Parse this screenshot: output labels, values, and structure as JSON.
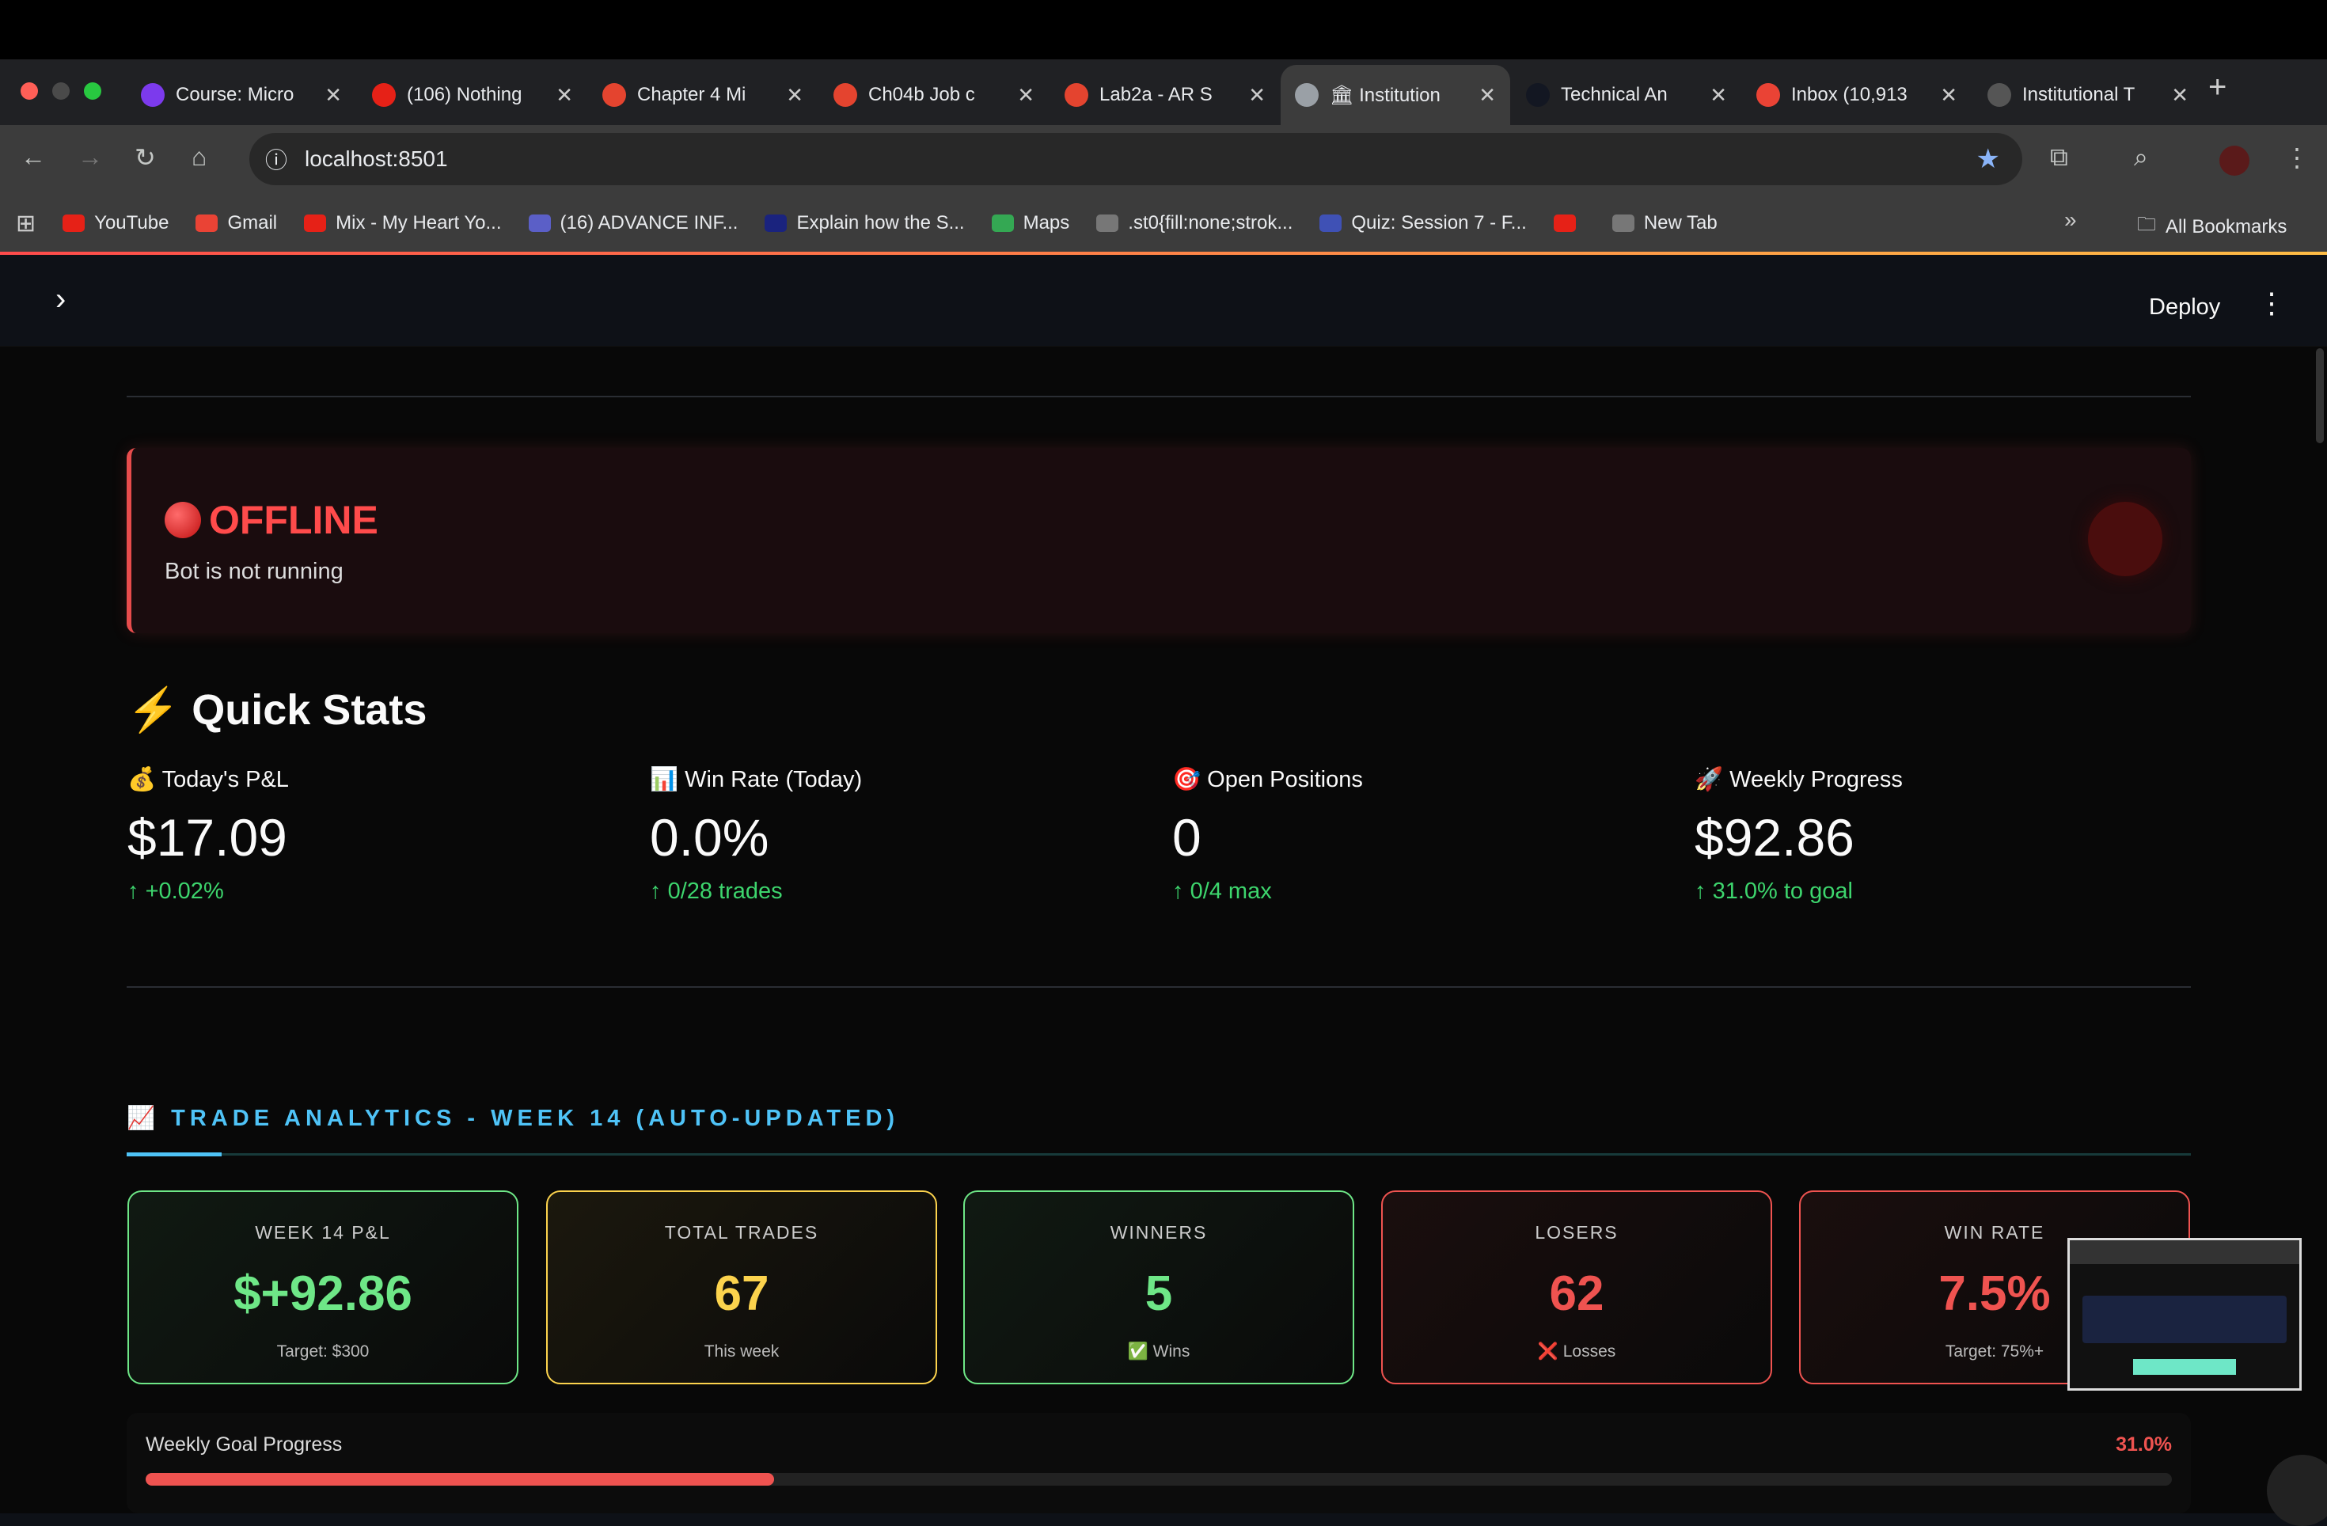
{
  "browser": {
    "tabs": [
      {
        "title": "Course: Micro",
        "icon": "course-icon",
        "color": "#7c3aed"
      },
      {
        "title": "(106) Nothing",
        "icon": "youtube-icon",
        "color": "#e62117"
      },
      {
        "title": "Chapter 4 Mi",
        "icon": "canvas-icon",
        "color": "#e4442f"
      },
      {
        "title": "Ch04b Job c",
        "icon": "canvas-icon",
        "color": "#e4442f"
      },
      {
        "title": "Lab2a - AR S",
        "icon": "canvas-icon",
        "color": "#e4442f"
      },
      {
        "title": "🏛 Institution",
        "icon": "bank-icon",
        "color": "#9aa0a6",
        "active": true
      },
      {
        "title": "Technical An",
        "icon": "tradingview-icon",
        "color": "#131722"
      },
      {
        "title": "Inbox (10,913",
        "icon": "gmail-icon",
        "color": "#ea4335"
      },
      {
        "title": "Institutional T",
        "icon": "openai-icon",
        "color": "#555"
      }
    ],
    "url": "localhost:8501",
    "bookmarks": [
      {
        "label": "YouTube",
        "icon": "youtube-icon",
        "color": "#e62117"
      },
      {
        "label": "Gmail",
        "icon": "gmail-icon",
        "color": "#ea4335"
      },
      {
        "label": "Mix - My Heart Yo...",
        "icon": "youtube-icon",
        "color": "#e62117"
      },
      {
        "label": "(16) ADVANCE INF...",
        "icon": "teams-icon",
        "color": "#5b5fc7"
      },
      {
        "label": "Explain how the S...",
        "icon": "star-badge-icon",
        "color": "#1a237e"
      },
      {
        "label": "Maps",
        "icon": "maps-icon",
        "color": "#34a853"
      },
      {
        "label": ".st0{fill:none;strok...",
        "icon": "globe-icon",
        "color": "#777"
      },
      {
        "label": "Quiz: Session 7 - F...",
        "icon": "school-icon",
        "color": "#3f51b5"
      },
      {
        "label": "",
        "icon": "youtube-icon",
        "color": "#e62117"
      },
      {
        "label": "New Tab",
        "icon": "globe-icon",
        "color": "#777"
      }
    ],
    "all_bookmarks": "All Bookmarks"
  },
  "app": {
    "deploy": "Deploy",
    "status": {
      "title": "OFFLINE",
      "subtitle": "Bot is not running",
      "color": "#ff4b4b"
    },
    "quick_stats": {
      "heading": "⚡ Quick Stats",
      "items": [
        {
          "label": "💰 Today's P&L",
          "value": "$17.09",
          "delta": "+0.02%"
        },
        {
          "label": "📊 Win Rate (Today)",
          "value": "0.0%",
          "delta": "0/28 trades"
        },
        {
          "label": "🎯 Open Positions",
          "value": "0",
          "delta": "0/4 max"
        },
        {
          "label": "🚀 Weekly Progress",
          "value": "$92.86",
          "delta": "31.0% to goal"
        }
      ]
    },
    "analytics": {
      "heading": "📈 TRADE ANALYTICS - WEEK 14 (AUTO-UPDATED)",
      "cards": [
        {
          "label": "WEEK 14 P&L",
          "value": "$+92.86",
          "sub": "Target: $300",
          "color": "#6ee787"
        },
        {
          "label": "TOTAL TRADES",
          "value": "67",
          "sub": "This week",
          "color": "#fcd34d"
        },
        {
          "label": "WINNERS",
          "value": "5",
          "sub": "✅ Wins",
          "color": "#6ee787"
        },
        {
          "label": "LOSERS",
          "value": "62",
          "sub": "❌ Losses",
          "color": "#ef5350"
        },
        {
          "label": "WIN RATE",
          "value": "7.5%",
          "sub": "Target: 75%+",
          "color": "#ef5350"
        }
      ],
      "goal": {
        "label": "Weekly Goal Progress",
        "value": "31.0%",
        "percent": 31.0,
        "color": "#ef5350"
      }
    }
  }
}
